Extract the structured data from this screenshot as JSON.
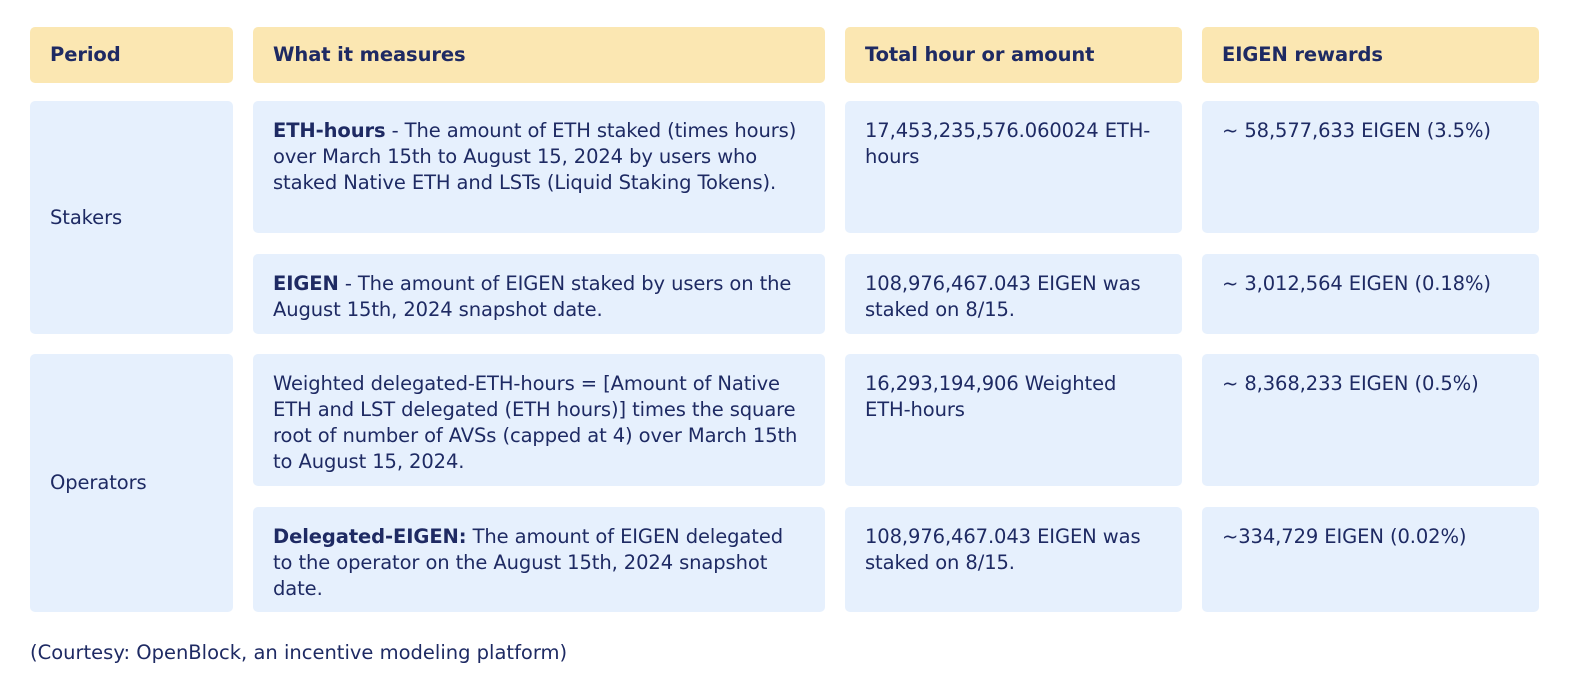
{
  "headers": {
    "period": "Period",
    "measures": "What it measures",
    "total": "Total hour or amount",
    "rewards": "EIGEN rewards"
  },
  "stakers": {
    "label": "Stakers",
    "rows": [
      {
        "measure_bold": "ETH-hours",
        "measure_text": " -  The amount of ETH staked (times hours) over March 15th to August 15, 2024  by users who staked Native ETH and LSTs (Liquid Staking Tokens).",
        "total": "17,453,235,576.060024 ETH-hours",
        "reward": "~ 58,577,633 EIGEN (3.5%)"
      },
      {
        "measure_bold": "EIGEN",
        "measure_text": " - The amount of EIGEN staked by users on the August 15th, 2024 snapshot date.",
        "total": "108,976,467.043 EIGEN was staked on 8/15.",
        "reward": "~ 3,012,564 EIGEN  (0.18%)"
      }
    ]
  },
  "operators": {
    "label": "Operators",
    "rows": [
      {
        "measure_bold": "",
        "measure_text": "Weighted delegated-ETH-hours = [Amount of Native ETH and LST delegated (ETH hours)] times the square root of number of  AVSs (capped at 4) over March 15th to August 15, 2024.",
        "total": "16,293,194,906 Weighted ETH-hours",
        "reward": "~ 8,368,233 EIGEN (0.5%)"
      },
      {
        "measure_bold": "Delegated-EIGEN:",
        "measure_text": " The amount of EIGEN delegated to the operator on the August 15th, 2024 snapshot date.",
        "total": "108,976,467.043 EIGEN was staked on 8/15.",
        "reward": "~334,729 EIGEN (0.02%)"
      }
    ]
  },
  "caption": "(Courtesy: OpenBlock, an incentive modeling platform)"
}
